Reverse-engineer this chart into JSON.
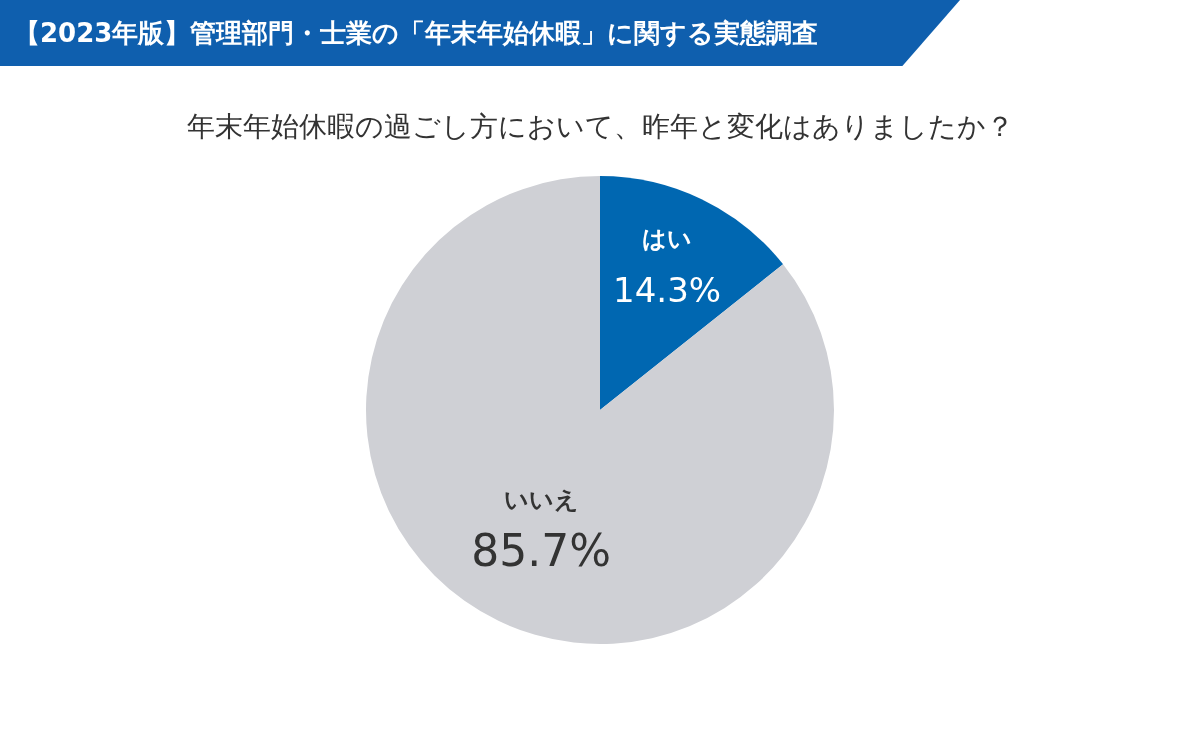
{
  "chart_data": {
    "type": "pie",
    "title": "【2023年版】管理部門・士業の「年末年始休暇」に関する実態調査",
    "subtitle": "年末年始休暇の過ごし方において、昨年と変化はありましたか？",
    "categories": [
      "はい",
      "いいえ"
    ],
    "values": [
      14.3,
      85.7
    ],
    "colors": [
      "#0067b1",
      "#cfd0d5"
    ],
    "value_labels": [
      "14.3%",
      "85.7%"
    ],
    "legend": false
  }
}
